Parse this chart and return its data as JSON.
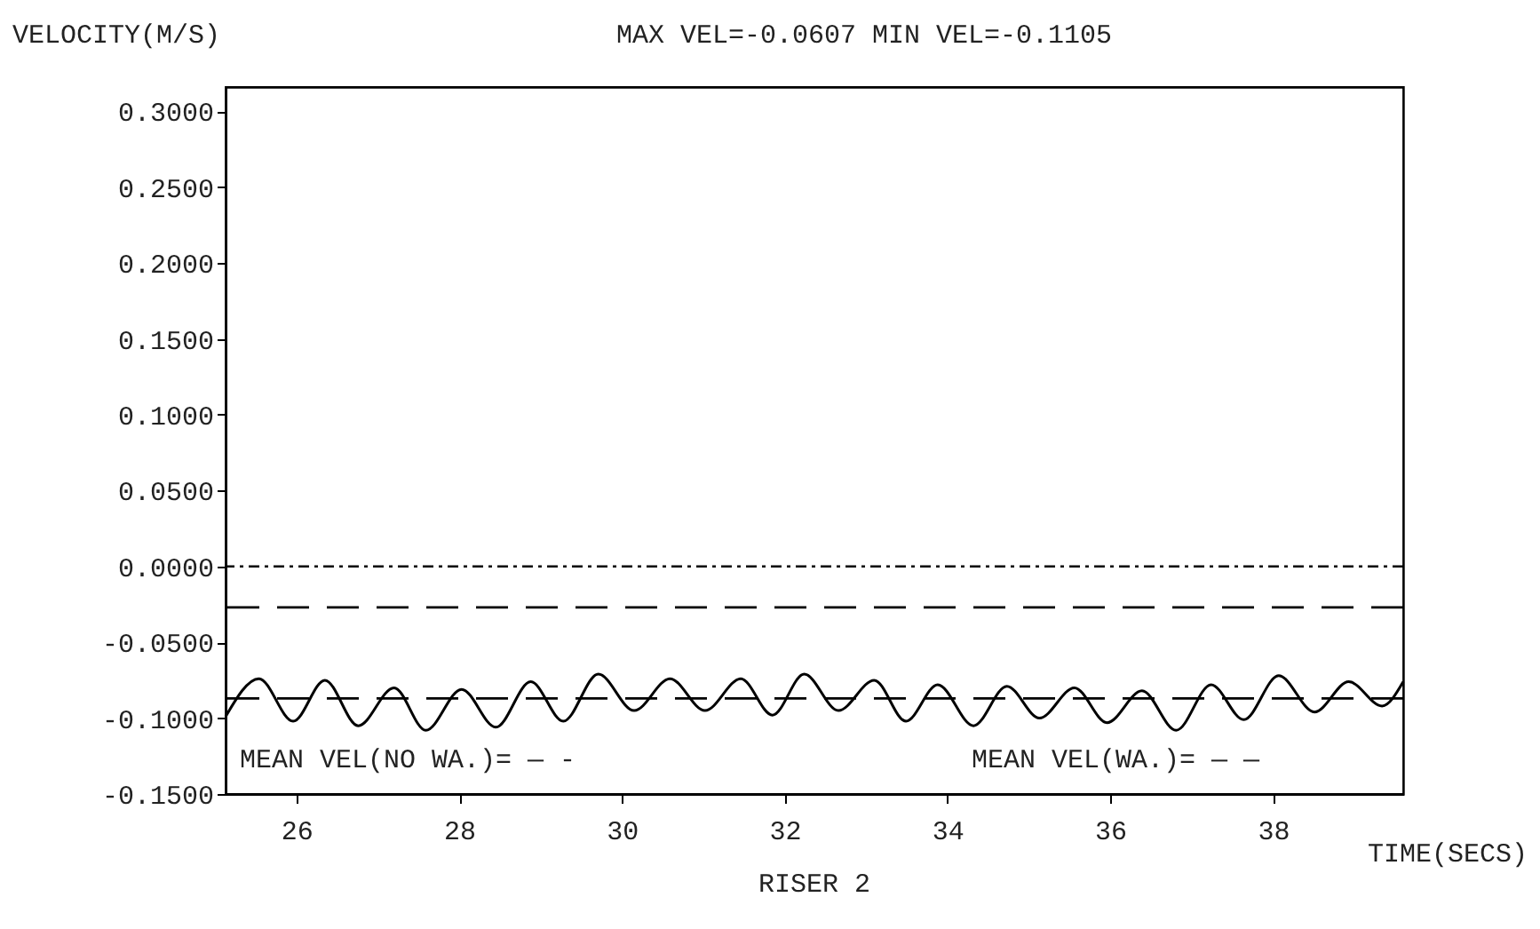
{
  "chart_data": {
    "type": "line",
    "title": "RISER 2",
    "xlabel": "TIME(SECS)",
    "ylabel": "VELOCITY(M/S)",
    "annotations": [
      "MAX VEL=-0.0607   MIN VEL=-0.1105",
      "MEAN VEL(NO WA.)= — -",
      "MEAN VEL(WA.)= — —"
    ],
    "xlim": [
      25.13,
      39.6
    ],
    "xticks": [
      26,
      28,
      30,
      32,
      34,
      36,
      38
    ],
    "ylim": [
      -0.15,
      0.316
    ],
    "yticks": [
      {
        "value": 0.3,
        "label": "0.3000"
      },
      {
        "value": 0.25,
        "label": "0.2500"
      },
      {
        "value": 0.2,
        "label": "0.2000"
      },
      {
        "value": 0.15,
        "label": "0.1500"
      },
      {
        "value": 0.1,
        "label": "0.1000"
      },
      {
        "value": 0.05,
        "label": "0.0500"
      },
      {
        "value": 0,
        "label": "0.0000"
      },
      {
        "value": -0.05,
        "label": "-0.0500"
      },
      {
        "value": -0.1,
        "label": "-0.1000"
      },
      {
        "value": -0.15,
        "label": "-0.1500"
      }
    ],
    "grid": false,
    "marker": "none",
    "line_style": "solid",
    "ref_lines": [
      {
        "axis": "y",
        "value": 0,
        "line_style": "dotted",
        "color": "#000000"
      },
      {
        "axis": "y",
        "value": -0.027,
        "line_style": "dashed",
        "color": "#000000"
      },
      {
        "axis": "y",
        "value": -0.087,
        "line_style": "dashed",
        "color": "#000000"
      }
    ],
    "series": [
      {
        "color": "#000000",
        "x": [
          25.13,
          25.54,
          25.96,
          26.35,
          26.76,
          27.2,
          27.59,
          28.03,
          28.45,
          28.88,
          29.28,
          29.71,
          30.15,
          30.59,
          31.02,
          31.46,
          31.85,
          32.24,
          32.66,
          33.1,
          33.49,
          33.88,
          34.32,
          34.73,
          35.13,
          35.56,
          35.96,
          36.39,
          36.81,
          37.24,
          37.64,
          38.07,
          38.51,
          38.93,
          39.34,
          39.6
        ],
        "values": [
          -0.099,
          -0.074,
          -0.102,
          -0.075,
          -0.105,
          -0.08,
          -0.108,
          -0.081,
          -0.106,
          -0.076,
          -0.102,
          -0.071,
          -0.095,
          -0.074,
          -0.095,
          -0.074,
          -0.098,
          -0.071,
          -0.095,
          -0.075,
          -0.102,
          -0.078,
          -0.105,
          -0.079,
          -0.1,
          -0.08,
          -0.103,
          -0.082,
          -0.108,
          -0.078,
          -0.101,
          -0.072,
          -0.096,
          -0.076,
          -0.092,
          -0.076
        ]
      }
    ]
  }
}
